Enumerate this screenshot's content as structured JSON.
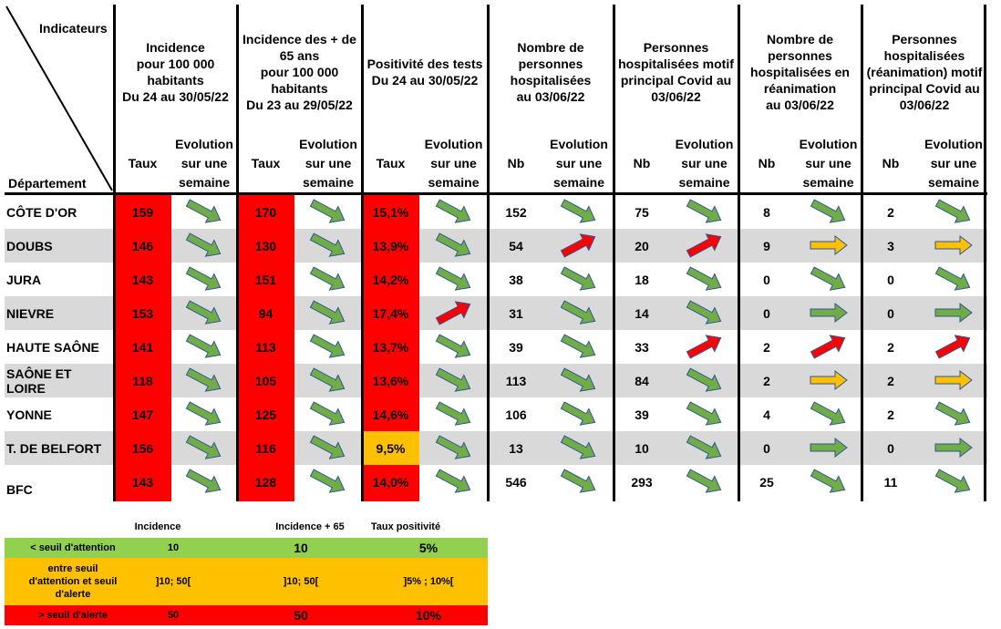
{
  "corner": {
    "top": "Indicateurs",
    "bottom": "Département"
  },
  "groups": [
    {
      "title": "Incidence\npour 100 000\nhabitants\nDu 24 au 30/05/22",
      "col1": "Taux",
      "col2": "Evolution\nsur une\nsemaine"
    },
    {
      "title": "Incidence des + de\n65 ans\npour 100 000\nhabitants\nDu 23 au 29/05/22",
      "col1": "Taux",
      "col2": "Evolution\nsur une\nsemaine"
    },
    {
      "title": "Positivité des tests\nDu 24 au 30/05/22",
      "col1": "Taux",
      "col2": "Evolution\nsur une\nsemaine"
    },
    {
      "title": "Nombre de\npersonnes\nhospitalisées\nau 03/06/22",
      "col1": "Nb",
      "col2": "Evolution\nsur une\nsemaine"
    },
    {
      "title": "Personnes\nhospitalisées motif\nprincipal Covid au\n03/06/22",
      "col1": "Nb",
      "col2": "Evolution\nsur une\nsemaine"
    },
    {
      "title": "Nombre de\npersonnes\nhospitalisées en\nréanimation\nau 03/06/22",
      "col1": "Nb",
      "col2": "Evolution\nsur une\nsemaine"
    },
    {
      "title": "Personnes\nhospitalisées\n(réanimation) motif\nprincipal Covid au\n03/06/22",
      "col1": "Nb",
      "col2": "Evolution\nsur une\nsemaine"
    }
  ],
  "arrow_colors": {
    "down": "#70ad47",
    "up": "#ff0000",
    "flat_green": "#70ad47",
    "flat_orange": "#ffc000",
    "outline": "#2f5597"
  },
  "cell_colors": {
    "red": "#ff0000",
    "orange": "#ffc000",
    "grey_row": "#d9d9d9"
  },
  "rows": [
    {
      "name": "CÔTE D'OR",
      "values": [
        "159",
        "170",
        "15,1%",
        "152",
        "75",
        "8",
        "2"
      ],
      "arrows": [
        "down",
        "down",
        "down",
        "down",
        "down",
        "down",
        "down"
      ]
    },
    {
      "name": "DOUBS",
      "values": [
        "146",
        "130",
        "13,9%",
        "54",
        "20",
        "9",
        "3"
      ],
      "arrows": [
        "down",
        "down",
        "down",
        "up",
        "up",
        "flat_orange",
        "flat_orange"
      ]
    },
    {
      "name": "JURA",
      "values": [
        "143",
        "151",
        "14,2%",
        "38",
        "18",
        "0",
        "0"
      ],
      "arrows": [
        "down",
        "down",
        "down",
        "down",
        "down",
        "down",
        "down"
      ]
    },
    {
      "name": "NIEVRE",
      "values": [
        "153",
        "94",
        "17,4%",
        "31",
        "14",
        "0",
        "0"
      ],
      "arrows": [
        "down",
        "down",
        "up",
        "down",
        "down",
        "flat_green",
        "flat_green"
      ]
    },
    {
      "name": "HAUTE SAÔNE",
      "values": [
        "141",
        "113",
        "13,7%",
        "39",
        "33",
        "2",
        "2"
      ],
      "arrows": [
        "down",
        "down",
        "down",
        "down",
        "up",
        "up",
        "up"
      ]
    },
    {
      "name": "SAÔNE ET LOIRE",
      "values": [
        "118",
        "105",
        "13,6%",
        "113",
        "84",
        "2",
        "2"
      ],
      "arrows": [
        "down",
        "down",
        "down",
        "down",
        "down",
        "flat_orange",
        "flat_orange"
      ]
    },
    {
      "name": "YONNE",
      "values": [
        "147",
        "125",
        "14,6%",
        "106",
        "39",
        "4",
        "2"
      ],
      "arrows": [
        "down",
        "down",
        "down",
        "down",
        "down",
        "down",
        "down"
      ]
    },
    {
      "name": "T. DE BELFORT",
      "values": [
        "156",
        "116",
        "9,5%",
        "13",
        "10",
        "0",
        "0"
      ],
      "arrows": [
        "down",
        "down",
        "down",
        "down",
        "down",
        "flat_green",
        "flat_green"
      ]
    },
    {
      "name": "BFC",
      "values": [
        "143",
        "128",
        "14,0%",
        "546",
        "293",
        "25",
        "11"
      ],
      "arrows": [
        "down",
        "down",
        "down",
        "down",
        "down",
        "down",
        "down"
      ]
    }
  ],
  "legend": {
    "headers": [
      "Incidence",
      "Incidence + 65",
      "Taux positivité"
    ],
    "rows": [
      {
        "label": "< seuil d'attention",
        "values": [
          "10",
          "10",
          "5%"
        ],
        "color": "#92d050"
      },
      {
        "label": "entre seuil\nd'attention et seuil\nd'alerte",
        "values": [
          "]10; 50[",
          "]10; 50[",
          "]5% ; 10%["
        ],
        "color": "#ffc000"
      },
      {
        "label": "> seuil d'alerte",
        "values": [
          "50",
          "50",
          "10%"
        ],
        "color": "#ff0000"
      }
    ]
  }
}
